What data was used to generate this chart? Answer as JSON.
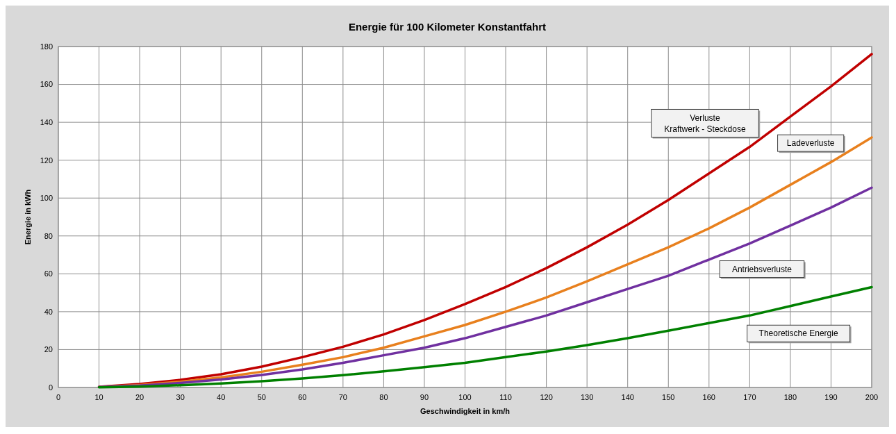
{
  "chart_data": {
    "type": "line",
    "title": "Energie für 100 Kilometer Konstantfahrt",
    "xlabel": "Geschwindigkeit  in  km/h",
    "ylabel": "Energie  in  kWh",
    "x": [
      10,
      20,
      30,
      40,
      50,
      60,
      70,
      80,
      90,
      100,
      110,
      120,
      130,
      140,
      150,
      160,
      170,
      180,
      190,
      200
    ],
    "xlim": [
      0,
      200
    ],
    "xticks": [
      0,
      10,
      20,
      30,
      40,
      50,
      60,
      70,
      80,
      90,
      100,
      110,
      120,
      130,
      140,
      150,
      160,
      170,
      180,
      190,
      200
    ],
    "ylim": [
      0,
      180
    ],
    "yticks": [
      0,
      20,
      40,
      60,
      80,
      100,
      120,
      140,
      160,
      180
    ],
    "grid": true,
    "legend": false,
    "marker": "none",
    "line_style": "solid",
    "series": [
      {
        "name": "Verluste Kraftwerk - Steckdose",
        "color": "#c00000",
        "values": [
          0.4,
          1.8,
          4,
          7,
          11,
          16,
          21.5,
          28,
          35.6,
          44,
          53,
          63,
          74,
          86,
          99,
          113,
          127,
          143,
          159,
          176
        ]
      },
      {
        "name": "Ladeverluste",
        "color": "#e8801e",
        "values": [
          0.3,
          1.3,
          3,
          5.3,
          8.3,
          12,
          16,
          21,
          27,
          33,
          40,
          47.5,
          56,
          65,
          74,
          84,
          95,
          107,
          119,
          132
        ]
      },
      {
        "name": "Antriebsverluste",
        "color": "#7030a0",
        "values": [
          0.3,
          1,
          2.4,
          4.2,
          6.6,
          9.5,
          13,
          17,
          21,
          26,
          32,
          38,
          45,
          52,
          59,
          67.5,
          76,
          85.5,
          95,
          105.5
        ]
      },
      {
        "name": "Theoretische Energie",
        "color": "#008000",
        "values": [
          0.1,
          0.5,
          1.2,
          2.1,
          3.3,
          4.8,
          6.5,
          8.5,
          10.7,
          13,
          16,
          19,
          22.4,
          26,
          30,
          34,
          38,
          43,
          48,
          53
        ]
      }
    ]
  }
}
